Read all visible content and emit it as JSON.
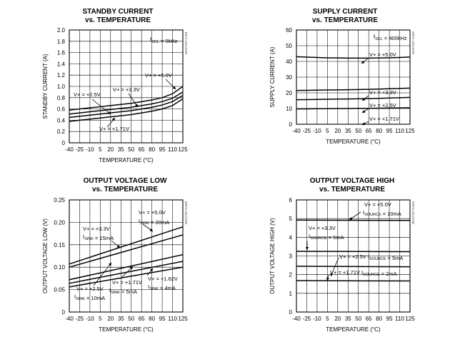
{
  "charts": [
    {
      "id": "standby",
      "title": [
        "STANDBY CURRENT",
        "vs. TEMPERATURE"
      ],
      "xlabel": "TEMPERATURE (°C)",
      "ylabel": "STANDBY CURRENT (A)",
      "code": "MAX7327 toc01",
      "xticks": [
        "-40",
        "-25",
        "-10",
        "5",
        "20",
        "35",
        "50",
        "65",
        "80",
        "95",
        "110",
        "125"
      ],
      "yticks": [
        "0",
        "0.2",
        "0.4",
        "0.6",
        "0.8",
        "1.0",
        "1.2",
        "1.4",
        "1.6",
        "1.8",
        "2.0"
      ],
      "annotations": [
        {
          "parts": [
            {
              "t": "f"
            },
            {
              "t": "SCL",
              "sub": true
            },
            {
              "t": " = 0kHz"
            }
          ]
        },
        {
          "parts": [
            {
              "t": "V+ = +5.0V"
            }
          ]
        },
        {
          "parts": [
            {
              "t": "V+ = +3.3V"
            }
          ]
        },
        {
          "parts": [
            {
              "t": "V+ = +2.5V"
            }
          ]
        },
        {
          "parts": [
            {
              "t": "V+ = +1.71V"
            }
          ]
        }
      ]
    },
    {
      "id": "supply",
      "title": [
        "SUPPLY CURRENT",
        "vs. TEMPERATURE"
      ],
      "xlabel": "TEMPERATURE (°C)",
      "ylabel": "SUPPLY CURRENT (A)",
      "code": "MAX7327 toc02",
      "xticks": [
        "-40",
        "-25",
        "-10",
        "5",
        "20",
        "35",
        "50",
        "65",
        "80",
        "95",
        "110",
        "125"
      ],
      "yticks": [
        "0",
        "10",
        "20",
        "30",
        "40",
        "50",
        "60"
      ],
      "annotations": [
        {
          "parts": [
            {
              "t": "f"
            },
            {
              "t": "SCL",
              "sub": true
            },
            {
              "t": " = 400kHz"
            }
          ]
        },
        {
          "parts": [
            {
              "t": "V+ = +5.0V"
            }
          ]
        },
        {
          "parts": [
            {
              "t": "V+ = +3.3V"
            }
          ]
        },
        {
          "parts": [
            {
              "t": "V+ = +2.5V"
            }
          ]
        },
        {
          "parts": [
            {
              "t": "V+ = +1.71V"
            }
          ]
        }
      ]
    },
    {
      "id": "vol",
      "title": [
        "OUTPUT VOLTAGE LOW",
        "vs. TEMPERATURE"
      ],
      "xlabel": "TEMPERATURE (°C)",
      "ylabel": "OUTPUT VOLTAGE LOW (V)",
      "code": "MAX7327 toc03",
      "xticks": [
        "-40",
        "-25",
        "-10",
        "5",
        "20",
        "35",
        "50",
        "65",
        "80",
        "95",
        "110",
        "125"
      ],
      "yticks": [
        "0",
        "0.05",
        "0.10",
        "0.15",
        "0.20",
        "0.25"
      ],
      "annotations": [
        {
          "parts": [
            {
              "t": "V+ = +5.0V"
            }
          ]
        },
        {
          "parts": [
            {
              "t": "I"
            },
            {
              "t": "SINK",
              "sub": true
            },
            {
              "t": " = 20mA"
            }
          ]
        },
        {
          "parts": [
            {
              "t": "V+ = +3.3V"
            }
          ]
        },
        {
          "parts": [
            {
              "t": "I"
            },
            {
              "t": "SINK",
              "sub": true
            },
            {
              "t": " = 15mA"
            }
          ]
        },
        {
          "parts": [
            {
              "t": "V+ = +2.5V"
            }
          ]
        },
        {
          "parts": [
            {
              "t": "I"
            },
            {
              "t": "SINK",
              "sub": true
            },
            {
              "t": " = 10mA"
            }
          ]
        },
        {
          "parts": [
            {
              "t": "V+ = +1.71V"
            }
          ]
        },
        {
          "parts": [
            {
              "t": "I"
            },
            {
              "t": "SINK",
              "sub": true
            },
            {
              "t": " = 5mA"
            }
          ]
        },
        {
          "parts": [
            {
              "t": "V+ = +1.62V"
            }
          ]
        },
        {
          "parts": [
            {
              "t": "I"
            },
            {
              "t": "SINK",
              "sub": true
            },
            {
              "t": " = 4mA"
            }
          ]
        }
      ]
    },
    {
      "id": "voh",
      "title": [
        "OUTPUT VOLTAGE HIGH",
        "vs. TEMPERATURE"
      ],
      "xlabel": "TEMPERATURE (°C)",
      "ylabel": "OUTPUT VOLTAGE HIGH (V)",
      "code": "MAX7327 toc04",
      "xticks": [
        "-40",
        "-25",
        "-10",
        "5",
        "20",
        "35",
        "50",
        "65",
        "80",
        "95",
        "110",
        "125"
      ],
      "yticks": [
        "0",
        "1",
        "2",
        "3",
        "4",
        "5",
        "6"
      ],
      "annotations": [
        {
          "parts": [
            {
              "t": "V+ = +5.0V"
            }
          ]
        },
        {
          "parts": [
            {
              "t": "I"
            },
            {
              "t": "SOURCE",
              "sub": true
            },
            {
              "t": " = 10mA"
            }
          ]
        },
        {
          "parts": [
            {
              "t": "V+ = +3.3V"
            }
          ]
        },
        {
          "parts": [
            {
              "t": "I"
            },
            {
              "t": "SOURCE",
              "sub": true
            },
            {
              "t": " = 5mA"
            }
          ]
        },
        {
          "parts": [
            {
              "t": "V+ = +2.5V I"
            },
            {
              "t": "SOURCE",
              "sub": true
            },
            {
              "t": " = 5mA"
            }
          ]
        },
        {
          "parts": [
            {
              "t": "V+ = +1.71V I"
            },
            {
              "t": "SOURCE",
              "sub": true
            },
            {
              "t": " = 2mA"
            }
          ]
        }
      ]
    }
  ],
  "chart_data": [
    {
      "type": "line",
      "title": "STANDBY CURRENT vs. TEMPERATURE",
      "xlabel": "TEMPERATURE (°C)",
      "ylabel": "STANDBY CURRENT (A)",
      "xlim": [
        -40,
        125
      ],
      "ylim": [
        0,
        2.0
      ],
      "x": [
        -40,
        -25,
        -10,
        5,
        20,
        35,
        50,
        65,
        80,
        95,
        110,
        125
      ],
      "series": [
        {
          "name": "V+ = +5.0V",
          "values": [
            0.58,
            0.6,
            0.62,
            0.64,
            0.66,
            0.68,
            0.7,
            0.73,
            0.76,
            0.8,
            0.87,
            1.0
          ]
        },
        {
          "name": "V+ = +3.3V",
          "values": [
            0.51,
            0.53,
            0.55,
            0.57,
            0.59,
            0.61,
            0.63,
            0.66,
            0.69,
            0.73,
            0.79,
            0.9
          ]
        },
        {
          "name": "V+ = +2.5V",
          "values": [
            0.45,
            0.47,
            0.49,
            0.51,
            0.53,
            0.55,
            0.57,
            0.6,
            0.63,
            0.67,
            0.73,
            0.84
          ]
        },
        {
          "name": "V+ = +1.71V",
          "values": [
            0.38,
            0.4,
            0.42,
            0.44,
            0.46,
            0.48,
            0.5,
            0.53,
            0.56,
            0.6,
            0.66,
            0.78
          ]
        }
      ],
      "conditions": "fSCL = 0kHz"
    },
    {
      "type": "line",
      "title": "SUPPLY CURRENT vs. TEMPERATURE",
      "xlabel": "TEMPERATURE (°C)",
      "ylabel": "SUPPLY CURRENT (A)",
      "xlim": [
        -40,
        125
      ],
      "ylim": [
        0,
        60
      ],
      "x": [
        -40,
        -25,
        -10,
        5,
        20,
        35,
        50,
        65,
        80,
        95,
        110,
        125
      ],
      "series": [
        {
          "name": "V+ = +5.0V",
          "values": [
            43.0,
            42.7,
            42.5,
            42.3,
            42.2,
            42.1,
            42.1,
            42.1,
            42.2,
            42.3,
            42.5,
            42.8
          ]
        },
        {
          "name": "V+ = +3.3V",
          "values": [
            21.5,
            21.6,
            21.7,
            21.8,
            21.9,
            22.0,
            22.1,
            22.2,
            22.4,
            22.6,
            22.8,
            23.0
          ]
        },
        {
          "name": "V+ = +2.5V",
          "values": [
            15.6,
            15.7,
            15.8,
            15.9,
            16.0,
            16.1,
            16.2,
            16.3,
            16.5,
            16.7,
            16.9,
            17.1
          ]
        },
        {
          "name": "V+ = +1.71V",
          "values": [
            9.8,
            9.8,
            9.9,
            9.9,
            10.0,
            10.0,
            10.1,
            10.1,
            10.2,
            10.3,
            10.4,
            10.5
          ]
        }
      ],
      "conditions": "fSCL = 400kHz"
    },
    {
      "type": "line",
      "title": "OUTPUT VOLTAGE LOW vs. TEMPERATURE",
      "xlabel": "TEMPERATURE (°C)",
      "ylabel": "OUTPUT VOLTAGE LOW (V)",
      "xlim": [
        -40,
        125
      ],
      "ylim": [
        0,
        0.25
      ],
      "x": [
        -40,
        125
      ],
      "series": [
        {
          "name": "V+ = +5.0V, ISINK = 20mA",
          "values": [
            0.107,
            0.19
          ]
        },
        {
          "name": "V+ = +3.3V, ISINK = 15mA",
          "values": [
            0.1,
            0.172
          ]
        },
        {
          "name": "V+ = +2.5V, ISINK = 10mA",
          "values": [
            0.072,
            0.128
          ]
        },
        {
          "name": "V+ = +1.71V, ISINK = 5mA",
          "values": [
            0.064,
            0.113
          ]
        },
        {
          "name": "V+ = +1.62V, ISINK = 4mA",
          "values": [
            0.056,
            0.1
          ]
        }
      ]
    },
    {
      "type": "line",
      "title": "OUTPUT VOLTAGE HIGH vs. TEMPERATURE",
      "xlabel": "TEMPERATURE (°C)",
      "ylabel": "OUTPUT VOLTAGE HIGH (V)",
      "xlim": [
        -40,
        125
      ],
      "ylim": [
        0,
        6
      ],
      "x": [
        -40,
        125
      ],
      "series": [
        {
          "name": "V+ = +5.0V, ISOURCE = 10mA",
          "values": [
            4.92,
            4.9
          ]
        },
        {
          "name": "V+ = +3.3V, ISOURCE = 5mA",
          "values": [
            3.25,
            3.23
          ]
        },
        {
          "name": "V+ = +2.5V, ISOURCE = 5mA",
          "values": [
            2.45,
            2.42
          ]
        },
        {
          "name": "V+ = +1.71V, ISOURCE = 2mA",
          "values": [
            1.68,
            1.66
          ]
        }
      ]
    }
  ]
}
